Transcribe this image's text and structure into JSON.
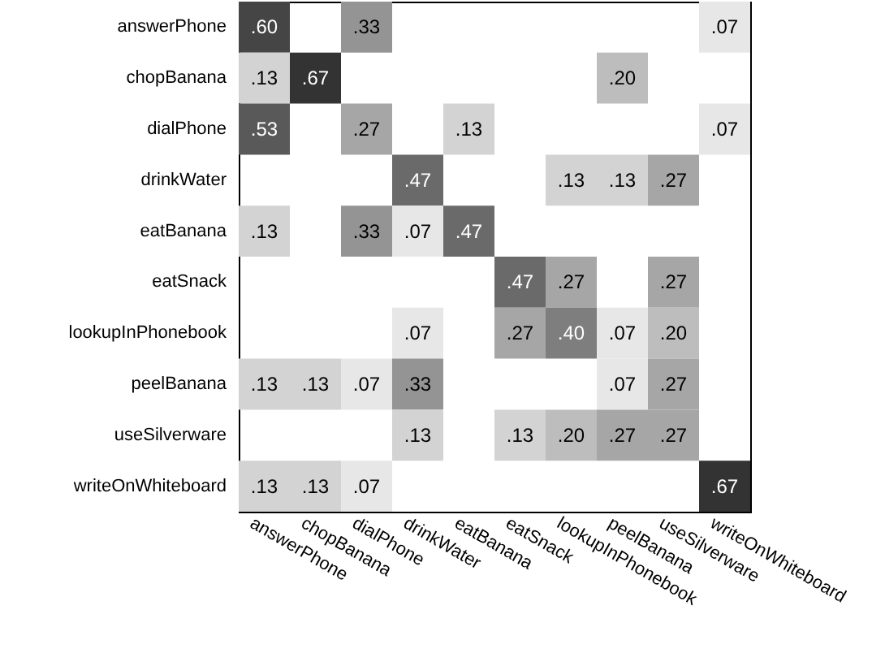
{
  "chart_data": {
    "type": "heatmap",
    "categories": [
      "answerPhone",
      "chopBanana",
      "dialPhone",
      "drinkWater",
      "eatBanana",
      "eatSnack",
      "lookupInPhonebook",
      "peelBanana",
      "useSilverware",
      "writeOnWhiteboard"
    ],
    "y_categories": [
      "answerPhone",
      "chopBanana",
      "dialPhone",
      "drinkWater",
      "eatBanana",
      "eatSnack",
      "lookupInPhonebook",
      "peelBanana",
      "useSilverware",
      "writeOnWhiteboard"
    ],
    "cells": [
      [
        0.6,
        null,
        0.33,
        null,
        null,
        null,
        null,
        null,
        null,
        0.07
      ],
      [
        0.13,
        0.67,
        null,
        null,
        null,
        null,
        null,
        0.2,
        null,
        null
      ],
      [
        0.53,
        null,
        0.27,
        null,
        0.13,
        null,
        null,
        null,
        null,
        0.07
      ],
      [
        null,
        null,
        null,
        0.47,
        null,
        null,
        0.13,
        0.13,
        0.27,
        null
      ],
      [
        0.13,
        null,
        0.33,
        0.07,
        0.47,
        null,
        null,
        null,
        null,
        null
      ],
      [
        null,
        null,
        null,
        null,
        null,
        0.47,
        0.27,
        null,
        0.27,
        null
      ],
      [
        null,
        null,
        null,
        0.07,
        null,
        0.27,
        0.4,
        0.07,
        0.2,
        null
      ],
      [
        0.13,
        0.13,
        0.07,
        0.33,
        null,
        null,
        null,
        0.07,
        0.27,
        null
      ],
      [
        null,
        null,
        null,
        0.13,
        null,
        0.13,
        0.2,
        0.27,
        0.27,
        null
      ],
      [
        0.13,
        0.13,
        0.07,
        null,
        null,
        null,
        null,
        null,
        null,
        0.67
      ]
    ],
    "cell_labels": [
      [
        ".60",
        null,
        ".33",
        null,
        null,
        null,
        null,
        null,
        null,
        ".07"
      ],
      [
        ".13",
        ".67",
        null,
        null,
        null,
        null,
        null,
        ".20",
        null,
        null
      ],
      [
        ".53",
        null,
        ".27",
        null,
        ".13",
        null,
        null,
        null,
        null,
        ".07"
      ],
      [
        null,
        null,
        null,
        ".47",
        null,
        null,
        ".13",
        ".13",
        ".27",
        null
      ],
      [
        ".13",
        null,
        ".33",
        ".07",
        ".47",
        null,
        null,
        null,
        null,
        null
      ],
      [
        null,
        null,
        null,
        null,
        null,
        ".47",
        ".27",
        null,
        ".27",
        null
      ],
      [
        null,
        null,
        null,
        ".07",
        null,
        ".27",
        ".40",
        ".07",
        ".20",
        null
      ],
      [
        ".13",
        ".13",
        ".07",
        ".33",
        null,
        null,
        null,
        ".07",
        ".27",
        null
      ],
      [
        null,
        null,
        null,
        ".13",
        null,
        ".13",
        ".20",
        ".27",
        ".27",
        null
      ],
      [
        ".13",
        ".13",
        ".07",
        null,
        null,
        null,
        null,
        null,
        null,
        ".67"
      ]
    ]
  }
}
